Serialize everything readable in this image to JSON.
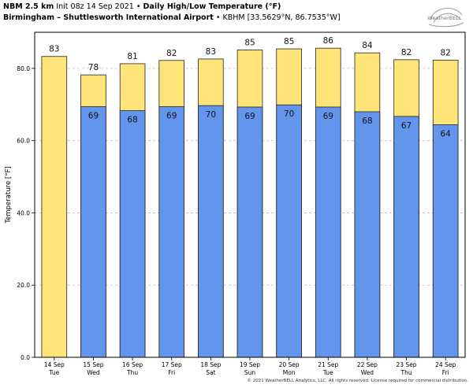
{
  "header": {
    "model": "NBM 2.5 km",
    "init": "Init 08z 14 Sep 2021",
    "bullet": "•",
    "title": "Daily High/Low Temperature (°F)",
    "station_name": "Birmingham – Shuttlesworth International Airport",
    "station_info": "KBHM [33.5629°N, 86.7535°W]"
  },
  "logo": {
    "text": "WeatherBELL"
  },
  "copyright": "© 2021 WeatherBELL Analytics, LLC. All rights reserved. License required for commercial distribution.",
  "colors": {
    "high": "#ffe47a",
    "low": "#6495ed",
    "edge": "#222222",
    "grid": "#bdbdbd",
    "plot_bg": "#ffffff"
  },
  "chart_data": {
    "type": "bar",
    "ylabel": "Temperature [°F]",
    "ylim": [
      0,
      90
    ],
    "yticks": [
      0,
      20,
      40,
      60,
      80
    ],
    "ytick_labels": [
      "0.0",
      "20.0",
      "40.0",
      "60.0",
      "80.0"
    ],
    "grid": true,
    "categories": [
      [
        "14 Sep",
        "Tue"
      ],
      [
        "15 Sep",
        "Wed"
      ],
      [
        "16 Sep",
        "Thu"
      ],
      [
        "17 Sep",
        "Fri"
      ],
      [
        "18 Sep",
        "Sat"
      ],
      [
        "19 Sep",
        "Sun"
      ],
      [
        "20 Sep",
        "Mon"
      ],
      [
        "21 Sep",
        "Tue"
      ],
      [
        "22 Sep",
        "Wed"
      ],
      [
        "23 Sep",
        "Thu"
      ],
      [
        "24 Sep",
        "Fri"
      ]
    ],
    "series": [
      {
        "values": [
          83.3,
          78.2,
          81.3,
          82.2,
          82.6,
          85.1,
          85.4,
          85.6,
          84.3,
          82.4,
          82.3
        ],
        "labels": [
          "83",
          "78",
          "81",
          "82",
          "83",
          "85",
          "85",
          "86",
          "84",
          "82",
          "82"
        ]
      },
      {
        "values": [
          null,
          69.4,
          68.3,
          69.4,
          69.7,
          69.3,
          69.9,
          69.3,
          68.0,
          66.7,
          64.4
        ],
        "labels": [
          "",
          "69",
          "68",
          "69",
          "70",
          "69",
          "70",
          "69",
          "68",
          "67",
          "64"
        ]
      }
    ]
  }
}
